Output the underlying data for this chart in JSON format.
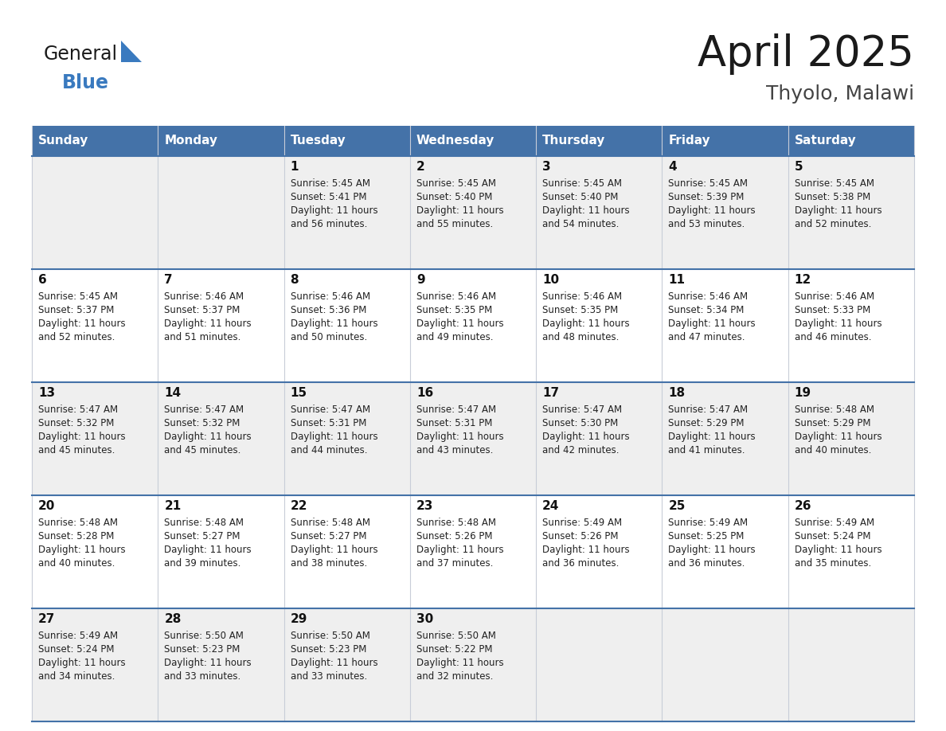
{
  "title": "April 2025",
  "subtitle": "Thyolo, Malawi",
  "header_bg": "#4472a8",
  "header_text": "#ffffff",
  "row_bg_odd": "#efefef",
  "row_bg_even": "#ffffff",
  "border_color": "#4472a8",
  "cell_border_color": "#b0b8c8",
  "day_headers": [
    "Sunday",
    "Monday",
    "Tuesday",
    "Wednesday",
    "Thursday",
    "Friday",
    "Saturday"
  ],
  "calendar": [
    [
      {
        "day": "",
        "sunrise": "",
        "sunset": "",
        "daylight_min": ""
      },
      {
        "day": "",
        "sunrise": "",
        "sunset": "",
        "daylight_min": ""
      },
      {
        "day": "1",
        "sunrise": "5:45 AM",
        "sunset": "5:41 PM",
        "daylight_min": "56"
      },
      {
        "day": "2",
        "sunrise": "5:45 AM",
        "sunset": "5:40 PM",
        "daylight_min": "55"
      },
      {
        "day": "3",
        "sunrise": "5:45 AM",
        "sunset": "5:40 PM",
        "daylight_min": "54"
      },
      {
        "day": "4",
        "sunrise": "5:45 AM",
        "sunset": "5:39 PM",
        "daylight_min": "53"
      },
      {
        "day": "5",
        "sunrise": "5:45 AM",
        "sunset": "5:38 PM",
        "daylight_min": "52"
      }
    ],
    [
      {
        "day": "6",
        "sunrise": "5:45 AM",
        "sunset": "5:37 PM",
        "daylight_min": "52"
      },
      {
        "day": "7",
        "sunrise": "5:46 AM",
        "sunset": "5:37 PM",
        "daylight_min": "51"
      },
      {
        "day": "8",
        "sunrise": "5:46 AM",
        "sunset": "5:36 PM",
        "daylight_min": "50"
      },
      {
        "day": "9",
        "sunrise": "5:46 AM",
        "sunset": "5:35 PM",
        "daylight_min": "49"
      },
      {
        "day": "10",
        "sunrise": "5:46 AM",
        "sunset": "5:35 PM",
        "daylight_min": "48"
      },
      {
        "day": "11",
        "sunrise": "5:46 AM",
        "sunset": "5:34 PM",
        "daylight_min": "47"
      },
      {
        "day": "12",
        "sunrise": "5:46 AM",
        "sunset": "5:33 PM",
        "daylight_min": "46"
      }
    ],
    [
      {
        "day": "13",
        "sunrise": "5:47 AM",
        "sunset": "5:32 PM",
        "daylight_min": "45"
      },
      {
        "day": "14",
        "sunrise": "5:47 AM",
        "sunset": "5:32 PM",
        "daylight_min": "45"
      },
      {
        "day": "15",
        "sunrise": "5:47 AM",
        "sunset": "5:31 PM",
        "daylight_min": "44"
      },
      {
        "day": "16",
        "sunrise": "5:47 AM",
        "sunset": "5:31 PM",
        "daylight_min": "43"
      },
      {
        "day": "17",
        "sunrise": "5:47 AM",
        "sunset": "5:30 PM",
        "daylight_min": "42"
      },
      {
        "day": "18",
        "sunrise": "5:47 AM",
        "sunset": "5:29 PM",
        "daylight_min": "41"
      },
      {
        "day": "19",
        "sunrise": "5:48 AM",
        "sunset": "5:29 PM",
        "daylight_min": "40"
      }
    ],
    [
      {
        "day": "20",
        "sunrise": "5:48 AM",
        "sunset": "5:28 PM",
        "daylight_min": "40"
      },
      {
        "day": "21",
        "sunrise": "5:48 AM",
        "sunset": "5:27 PM",
        "daylight_min": "39"
      },
      {
        "day": "22",
        "sunrise": "5:48 AM",
        "sunset": "5:27 PM",
        "daylight_min": "38"
      },
      {
        "day": "23",
        "sunrise": "5:48 AM",
        "sunset": "5:26 PM",
        "daylight_min": "37"
      },
      {
        "day": "24",
        "sunrise": "5:49 AM",
        "sunset": "5:26 PM",
        "daylight_min": "36"
      },
      {
        "day": "25",
        "sunrise": "5:49 AM",
        "sunset": "5:25 PM",
        "daylight_min": "36"
      },
      {
        "day": "26",
        "sunrise": "5:49 AM",
        "sunset": "5:24 PM",
        "daylight_min": "35"
      }
    ],
    [
      {
        "day": "27",
        "sunrise": "5:49 AM",
        "sunset": "5:24 PM",
        "daylight_min": "34"
      },
      {
        "day": "28",
        "sunrise": "5:50 AM",
        "sunset": "5:23 PM",
        "daylight_min": "33"
      },
      {
        "day": "29",
        "sunrise": "5:50 AM",
        "sunset": "5:23 PM",
        "daylight_min": "33"
      },
      {
        "day": "30",
        "sunrise": "5:50 AM",
        "sunset": "5:22 PM",
        "daylight_min": "32"
      },
      {
        "day": "",
        "sunrise": "",
        "sunset": "",
        "daylight_min": ""
      },
      {
        "day": "",
        "sunrise": "",
        "sunset": "",
        "daylight_min": ""
      },
      {
        "day": "",
        "sunrise": "",
        "sunset": "",
        "daylight_min": ""
      }
    ]
  ],
  "logo_color_general": "#1a1a1a",
  "logo_color_blue": "#3a7abf",
  "logo_triangle_color": "#3a7abf",
  "title_color": "#1a1a1a",
  "subtitle_color": "#444444"
}
